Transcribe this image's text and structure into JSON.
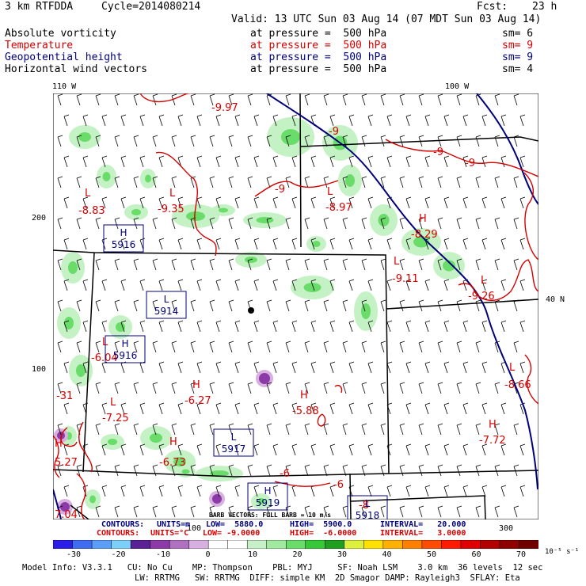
{
  "header": {
    "model": "3 km RTFDDA",
    "cycle": "Cycle=2014080214",
    "fcst_label": "Fcst:",
    "fcst_value": "23 h",
    "valid": "Valid: 13 UTC Sun 03 Aug 14 (07 MDT Sun 03 Aug 14)"
  },
  "fields": [
    {
      "name": "Absolute vorticity",
      "level": "at pressure =  500 hPa",
      "sm": "sm= 6",
      "color": "#000000"
    },
    {
      "name": "Temperature",
      "level": "at pressure =  500 hPa",
      "sm": "sm= 9",
      "color": "#d40000"
    },
    {
      "name": "Geopotential height",
      "level": "at pressure =  500 hPa",
      "sm": "sm= 9",
      "color": "#00007a"
    },
    {
      "name": "Horizontal wind vectors",
      "level": "at pressure =  500 hPa",
      "sm": "sm= 4",
      "color": "#000000"
    }
  ],
  "axes": {
    "top_left": "110 W",
    "top_right": "100 W",
    "lat_right": "40 N",
    "y200": "200",
    "y100": "100",
    "x100": "100",
    "x300": "300"
  },
  "map_labels": {
    "temps": [
      {
        "t": "-9.97"
      },
      {
        "t": "L"
      },
      {
        "t": "-8.83"
      },
      {
        "t": "L"
      },
      {
        "t": "-9.35"
      },
      {
        "t": "-9"
      },
      {
        "t": "-9"
      },
      {
        "t": "-9"
      },
      {
        "t": "-9"
      },
      {
        "t": "L"
      },
      {
        "t": "-8.97"
      },
      {
        "t": "H"
      },
      {
        "t": "-8.29"
      },
      {
        "t": "L"
      },
      {
        "t": "-9.11"
      },
      {
        "t": "L"
      },
      {
        "t": "-9.26"
      },
      {
        "t": "L"
      },
      {
        "t": "-6.04"
      },
      {
        "t": "H"
      },
      {
        "t": "-6.27"
      },
      {
        "t": "H"
      },
      {
        "t": "-5.88"
      },
      {
        "t": "L"
      },
      {
        "t": "-7.25"
      },
      {
        "t": "H"
      },
      {
        "t": "-6.73"
      },
      {
        "t": "L"
      },
      {
        "t": "-8.66"
      },
      {
        "t": "H"
      },
      {
        "t": "-7.72"
      },
      {
        "t": "-31"
      },
      {
        "t": "H"
      },
      {
        "t": "5.27"
      },
      {
        "t": "-6"
      },
      {
        "t": "-6"
      },
      {
        "t": "-8"
      },
      {
        "t": "7.04"
      }
    ],
    "heights": [
      {
        "t": "H",
        "v": "5916"
      },
      {
        "t": "L",
        "v": "5914"
      },
      {
        "t": "H",
        "v": "5916"
      },
      {
        "t": "L",
        "v": "5917"
      },
      {
        "t": "H",
        "v": "5919"
      },
      {
        "t": "L",
        "v": "5918"
      }
    ]
  },
  "footer": {
    "contours_black_label": "CONTOURS:",
    "contours_black_units": "UNITS=m",
    "contours_black_low": "LOW=  5880.0",
    "contours_black_high": "HIGH=  5900.0",
    "contours_black_interval": "INTERVAL=   20.000",
    "contours_red_label": "CONTOURS:",
    "contours_red_units": "UNITS=°C",
    "contours_red_low": "LOW= -9.0000",
    "contours_red_high": "HIGH=  -6.0000",
    "contours_red_interval": "INTERVAL=   3.0000",
    "barb_note": "BARB VECTORS: FULL BARB = 10 m/s",
    "colorbar_labels": [
      "-30",
      "-20",
      "-10",
      "0",
      "10",
      "20",
      "30",
      "40",
      "50",
      "60",
      "70"
    ],
    "colorbar_unit": "10⁻⁵ s⁻¹",
    "model_info_1": "Model Info: V3.3.1   CU: No Cu    MP: Thompson    PBL: MYJ     SF: Noah LSM    3.0 km  36 levels  12 sec",
    "model_info_2": "LW: RRTMG   SW: RRTMG  DIFF: simple KM  2D Smagor DAMP: Rayleigh3  SFLAY: Eta"
  },
  "colorbar_colors": [
    "#2a1ee8",
    "#3f6cf0",
    "#5a9ef7",
    "#7ccff9",
    "#5a2096",
    "#8c3aa8",
    "#b070c0",
    "#d8b0e0",
    "#ffffff",
    "#ffffff",
    "#c8f0c8",
    "#a0eaa0",
    "#6adc6a",
    "#36c836",
    "#1ea01e",
    "#dcf03c",
    "#ffe000",
    "#ffb000",
    "#ff8000",
    "#ff4c00",
    "#ff1a00",
    "#e00000",
    "#b40000",
    "#900000",
    "#700000"
  ]
}
